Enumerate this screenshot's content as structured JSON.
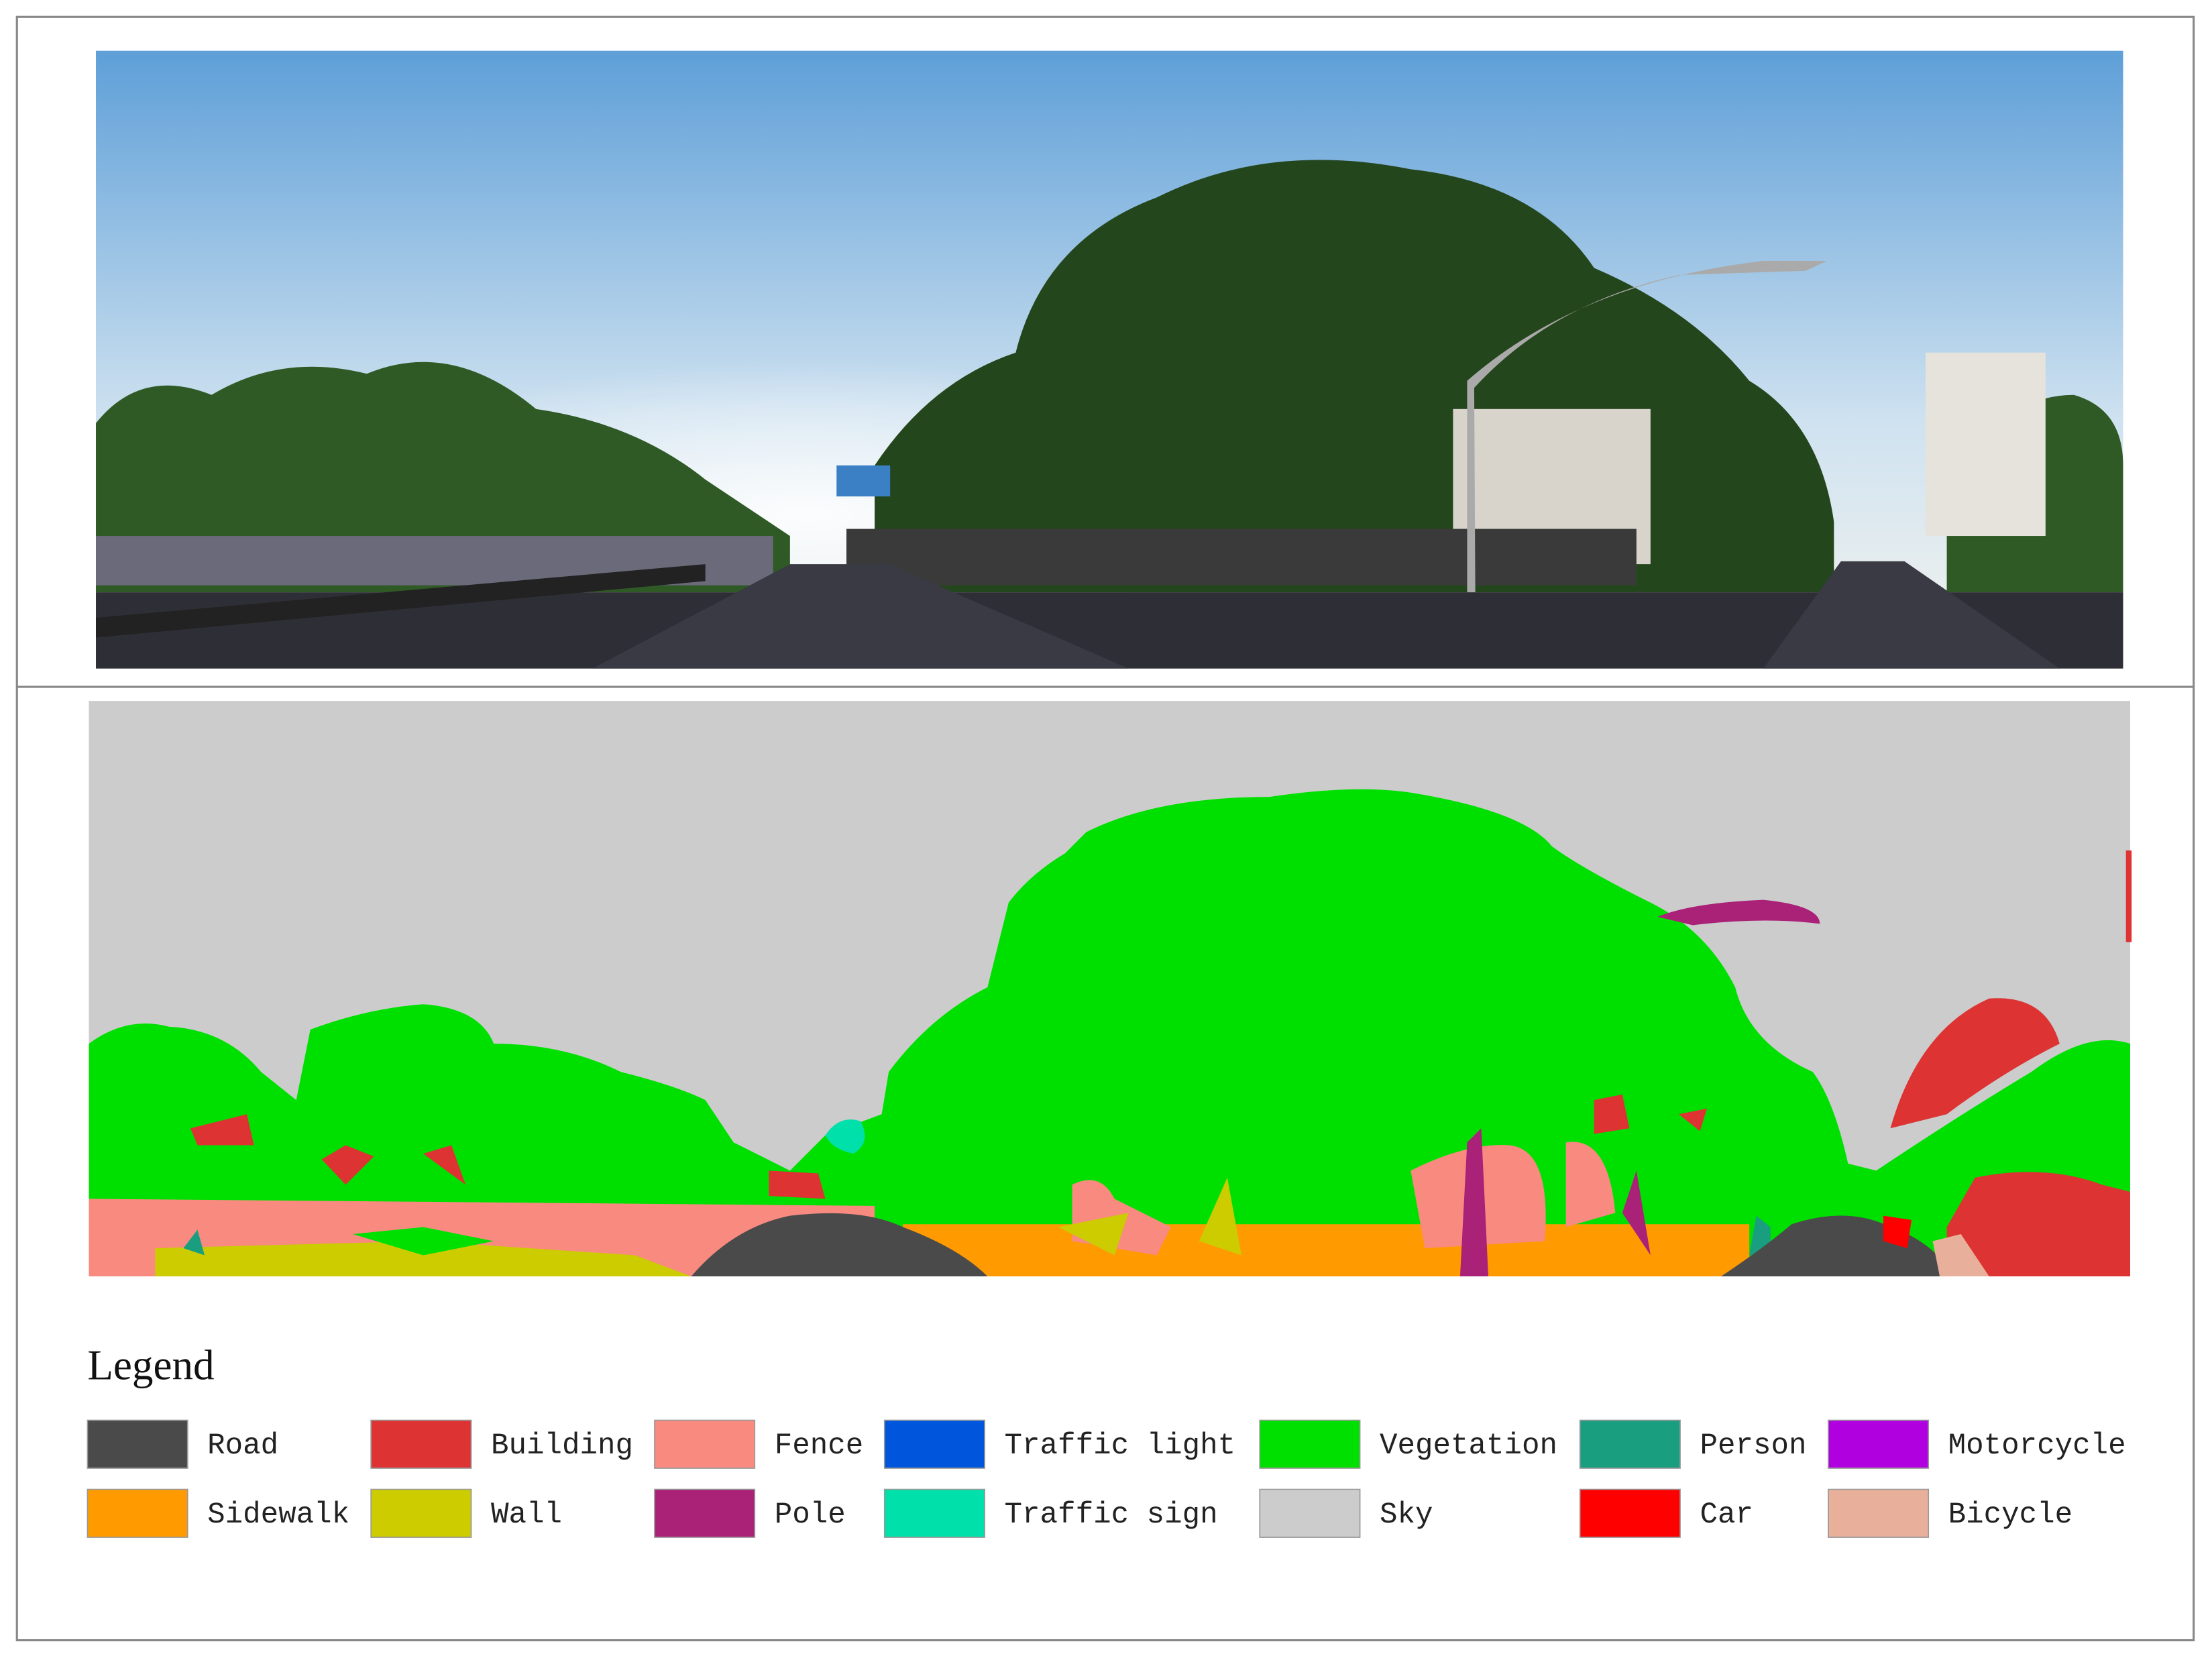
{
  "legend": {
    "title": "Legend",
    "items": [
      {
        "label": "Road",
        "color": "#4a4a4a"
      },
      {
        "label": "Building",
        "color": "#dd3333"
      },
      {
        "label": "Fence",
        "color": "#f88a80"
      },
      {
        "label": "Traffic light",
        "color": "#0055dd"
      },
      {
        "label": "Vegetation",
        "color": "#00e000"
      },
      {
        "label": "Person",
        "color": "#1a9e80"
      },
      {
        "label": "Motorcycle",
        "color": "#b000e0"
      },
      {
        "label": "Sidewalk",
        "color": "#ff9a00"
      },
      {
        "label": "Wall",
        "color": "#cccc00"
      },
      {
        "label": "Pole",
        "color": "#aa2277"
      },
      {
        "label": "Traffic sign",
        "color": "#00e0aa"
      },
      {
        "label": "Sky",
        "color": "#cccccc"
      },
      {
        "label": "Car",
        "color": "#ff0000"
      },
      {
        "label": "Bicycle",
        "color": "#e8b09a"
      }
    ]
  }
}
